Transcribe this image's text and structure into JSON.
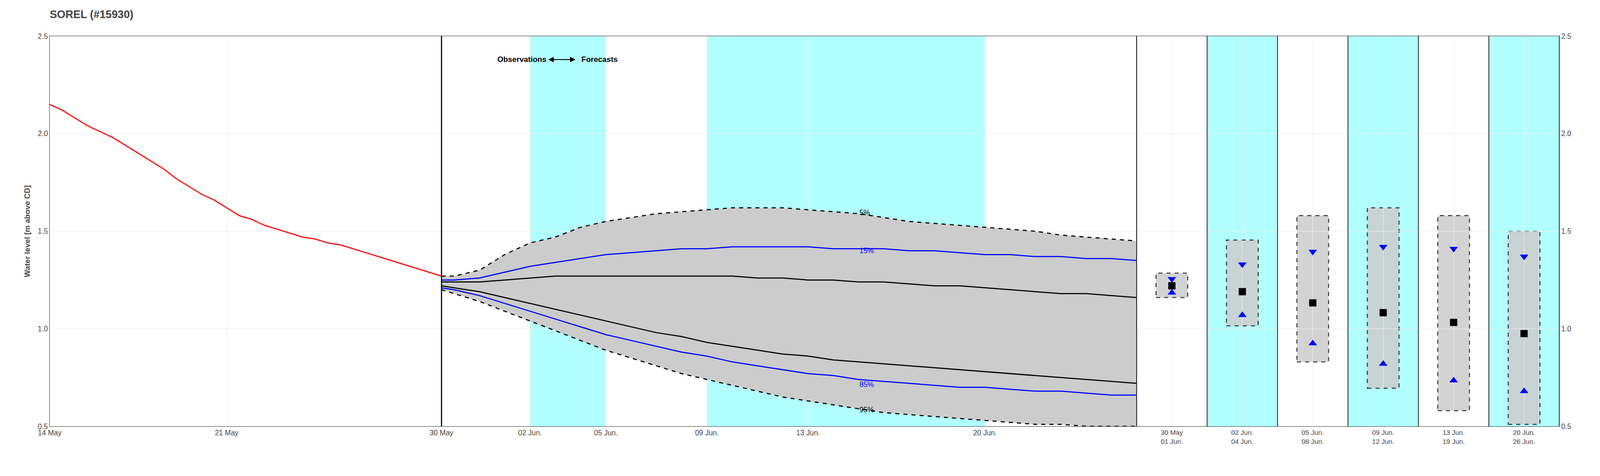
{
  "chart_data": [
    {
      "type": "line",
      "title": "SOREL (#15930)",
      "y_label": "Water level [m above CD]",
      "xlim": [
        0,
        43
      ],
      "xticks": [
        {
          "value": 0,
          "label": "14 May"
        },
        {
          "value": 7,
          "label": "21 May"
        },
        {
          "value": 15.5,
          "label": "30 May"
        },
        {
          "value": 19,
          "label": "02 Jun."
        },
        {
          "value": 22,
          "label": "05 Jun."
        },
        {
          "value": 26,
          "label": "09 Jun."
        },
        {
          "value": 30,
          "label": "13 Jun."
        },
        {
          "value": 37,
          "label": "20 Jun."
        }
      ],
      "ylim": [
        0.5,
        2.5
      ],
      "yticks": [
        0.5,
        {
          "value": 1.0,
          "label": "1.0"
        },
        1.5,
        {
          "value": 2.0,
          "label": "2.0"
        },
        2.5
      ],
      "grid": true,
      "spans": {
        "color": "#7fffff",
        "ranges": [
          [
            19,
            22
          ],
          [
            26,
            37
          ]
        ]
      },
      "vlines": [
        {
          "x": 15.5,
          "color": "black"
        }
      ],
      "series": [
        {
          "type": "band",
          "color": "#cccccc",
          "x": [
            15.5,
            16,
            17,
            18,
            19,
            20,
            21,
            22,
            23,
            24,
            25,
            26,
            27,
            28,
            29,
            30,
            31,
            32,
            33,
            34,
            35,
            36,
            37,
            38,
            39,
            40,
            41,
            42,
            43
          ],
          "low": [
            1.2,
            1.18,
            1.14,
            1.09,
            1.04,
            0.99,
            0.94,
            0.89,
            0.85,
            0.81,
            0.77,
            0.74,
            0.71,
            0.68,
            0.65,
            0.63,
            0.61,
            0.59,
            0.57,
            0.56,
            0.55,
            0.54,
            0.53,
            0.52,
            0.51,
            0.51,
            0.5,
            0.5,
            0.5
          ],
          "high": [
            1.27,
            1.27,
            1.3,
            1.38,
            1.44,
            1.47,
            1.52,
            1.55,
            1.57,
            1.59,
            1.6,
            1.61,
            1.62,
            1.62,
            1.62,
            1.61,
            1.6,
            1.59,
            1.57,
            1.55,
            1.54,
            1.53,
            1.52,
            1.51,
            1.5,
            1.48,
            1.47,
            1.46,
            1.45
          ]
        },
        {
          "type": "line",
          "color": "black",
          "line_style": "dashed",
          "x": [
            15.5,
            16,
            17,
            18,
            19,
            20,
            21,
            22,
            23,
            24,
            25,
            26,
            27,
            28,
            29,
            30,
            31,
            32,
            33,
            34,
            35,
            36,
            37,
            38,
            39,
            40,
            41,
            42,
            43
          ],
          "values": [
            1.27,
            1.27,
            1.3,
            1.38,
            1.44,
            1.47,
            1.52,
            1.55,
            1.57,
            1.59,
            1.6,
            1.61,
            1.62,
            1.62,
            1.62,
            1.61,
            1.6,
            1.59,
            1.57,
            1.55,
            1.54,
            1.53,
            1.52,
            1.51,
            1.5,
            1.48,
            1.47,
            1.46,
            1.45
          ]
        },
        {
          "type": "line",
          "color": "black",
          "line_style": "dashed",
          "x": [
            15.5,
            16,
            17,
            18,
            19,
            20,
            21,
            22,
            23,
            24,
            25,
            26,
            27,
            28,
            29,
            30,
            31,
            32,
            33,
            34,
            35,
            36,
            37,
            38,
            39,
            40,
            41,
            42,
            43
          ],
          "values": [
            1.2,
            1.18,
            1.14,
            1.09,
            1.04,
            0.99,
            0.94,
            0.89,
            0.85,
            0.81,
            0.77,
            0.74,
            0.71,
            0.68,
            0.65,
            0.63,
            0.61,
            0.59,
            0.57,
            0.56,
            0.55,
            0.54,
            0.53,
            0.52,
            0.51,
            0.51,
            0.5,
            0.5,
            0.5
          ]
        },
        {
          "type": "line",
          "color": "black",
          "line_style": "solid",
          "x": [
            15.5,
            16,
            17,
            18,
            19,
            20,
            21,
            22,
            23,
            24,
            25,
            26,
            27,
            28,
            29,
            30,
            31,
            32,
            33,
            34,
            35,
            36,
            37,
            38,
            39,
            40,
            41,
            42,
            43
          ],
          "values": [
            1.24,
            1.24,
            1.24,
            1.25,
            1.26,
            1.27,
            1.27,
            1.27,
            1.27,
            1.27,
            1.27,
            1.27,
            1.27,
            1.26,
            1.26,
            1.25,
            1.25,
            1.24,
            1.24,
            1.23,
            1.22,
            1.22,
            1.21,
            1.2,
            1.19,
            1.18,
            1.18,
            1.17,
            1.16
          ]
        },
        {
          "type": "line",
          "color": "black",
          "line_style": "solid",
          "x": [
            15.5,
            16,
            17,
            18,
            19,
            20,
            21,
            22,
            23,
            24,
            25,
            26,
            27,
            28,
            29,
            30,
            31,
            32,
            33,
            34,
            35,
            36,
            37,
            38,
            39,
            40,
            41,
            42,
            43
          ],
          "values": [
            1.22,
            1.21,
            1.19,
            1.16,
            1.13,
            1.1,
            1.07,
            1.04,
            1.01,
            0.98,
            0.96,
            0.93,
            0.91,
            0.89,
            0.87,
            0.86,
            0.84,
            0.83,
            0.82,
            0.81,
            0.8,
            0.79,
            0.78,
            0.77,
            0.76,
            0.75,
            0.74,
            0.73,
            0.72
          ]
        },
        {
          "type": "line",
          "color": "blue",
          "line_style": "solid",
          "x": [
            15.5,
            16,
            17,
            18,
            19,
            20,
            21,
            22,
            23,
            24,
            25,
            26,
            27,
            28,
            29,
            30,
            31,
            32,
            33,
            34,
            35,
            36,
            37,
            38,
            39,
            40,
            41,
            42,
            43
          ],
          "values": [
            1.25,
            1.25,
            1.26,
            1.29,
            1.32,
            1.34,
            1.36,
            1.38,
            1.39,
            1.4,
            1.41,
            1.41,
            1.42,
            1.42,
            1.42,
            1.42,
            1.41,
            1.41,
            1.41,
            1.4,
            1.4,
            1.39,
            1.38,
            1.38,
            1.37,
            1.37,
            1.36,
            1.36,
            1.35
          ]
        },
        {
          "type": "line",
          "color": "blue",
          "line_style": "solid",
          "x": [
            15.5,
            16,
            17,
            18,
            19,
            20,
            21,
            22,
            23,
            24,
            25,
            26,
            27,
            28,
            29,
            30,
            31,
            32,
            33,
            34,
            35,
            36,
            37,
            38,
            39,
            40,
            41,
            42,
            43
          ],
          "values": [
            1.21,
            1.2,
            1.17,
            1.13,
            1.09,
            1.05,
            1.01,
            0.97,
            0.94,
            0.91,
            0.88,
            0.86,
            0.83,
            0.81,
            0.79,
            0.77,
            0.76,
            0.74,
            0.73,
            0.72,
            0.71,
            0.7,
            0.7,
            0.69,
            0.68,
            0.68,
            0.67,
            0.66,
            0.66
          ]
        },
        {
          "type": "line",
          "color": "red",
          "line_style": "solid",
          "x": [
            0,
            0.5,
            1,
            1.5,
            2,
            2.5,
            3,
            3.5,
            4,
            4.5,
            5,
            5.5,
            6,
            6.5,
            7,
            7.5,
            8,
            8.5,
            9,
            9.5,
            10,
            10.5,
            11,
            11.5,
            12,
            12.5,
            13,
            13.5,
            14,
            14.5,
            15,
            15.5
          ],
          "values": [
            2.15,
            2.12,
            2.08,
            2.04,
            2.01,
            1.98,
            1.94,
            1.9,
            1.86,
            1.82,
            1.77,
            1.73,
            1.69,
            1.66,
            1.62,
            1.58,
            1.56,
            1.53,
            1.51,
            1.49,
            1.47,
            1.46,
            1.44,
            1.43,
            1.41,
            1.39,
            1.37,
            1.35,
            1.33,
            1.31,
            1.29,
            1.27
          ]
        }
      ],
      "annotations": [
        {
          "text": "5%",
          "x": 32,
          "y": 1.595,
          "color": "black",
          "align": "left"
        },
        {
          "text": "15%",
          "x": 32,
          "y": 1.4,
          "color": "blue",
          "align": "left"
        },
        {
          "text": "85%",
          "x": 32,
          "y": 0.715,
          "color": "blue",
          "align": "left"
        },
        {
          "text": "95%",
          "x": 32,
          "y": 0.585,
          "color": "black",
          "align": "left"
        },
        {
          "text": "Observations",
          "x": 19.7,
          "y": 2.38,
          "color": "black",
          "align": "right"
        },
        {
          "text": "Forecasts",
          "x": 21.0,
          "y": 2.38,
          "color": "black",
          "align": "left"
        }
      ],
      "arrows": [
        {
          "x0": 19.7,
          "x1": 20.8,
          "y": 2.38,
          "color": "black"
        }
      ]
    },
    {
      "type": "range",
      "categories": [
        "30 May\n01 Jun.",
        "02 Jun.\n04 Jun.",
        "05 Jun.\n08 Jun.",
        "09 Jun.\n12 Jun.",
        "13 Jun.\n19 Jun.",
        "20 Jun.\n26 Jun."
      ],
      "colors": [
        "white",
        "#7fffff",
        "white",
        "#7fffff",
        "white",
        "#7fffff"
      ],
      "ylim": [
        0.5,
        2.5
      ],
      "yticks": [
        0.5,
        {
          "value": 1.0,
          "label": "1.0"
        },
        1.5,
        {
          "value": 2.0,
          "label": "2.0"
        },
        2.5
      ],
      "grid": true,
      "series": [
        {
          "type": "range",
          "color": "#cccccc",
          "line_style": "dashed",
          "low": [
            1.16,
            1.015,
            0.83,
            0.695,
            0.58,
            0.51
          ],
          "high": [
            1.285,
            1.455,
            1.58,
            1.62,
            1.58,
            1.5
          ]
        },
        {
          "type": "scatter",
          "color": "black",
          "marker": "square",
          "values": [
            1.22,
            1.19,
            1.1325,
            1.0825,
            1.0325,
            0.975
          ]
        },
        {
          "type": "scatter",
          "color": "blue",
          "marker": "triangle-down",
          "values": [
            1.255,
            1.33,
            1.395,
            1.42,
            1.41,
            1.37
          ]
        },
        {
          "type": "scatter",
          "color": "blue",
          "marker": "triangle-up",
          "values": [
            1.185,
            1.07,
            0.925,
            0.82,
            0.735,
            0.68
          ]
        }
      ]
    }
  ]
}
